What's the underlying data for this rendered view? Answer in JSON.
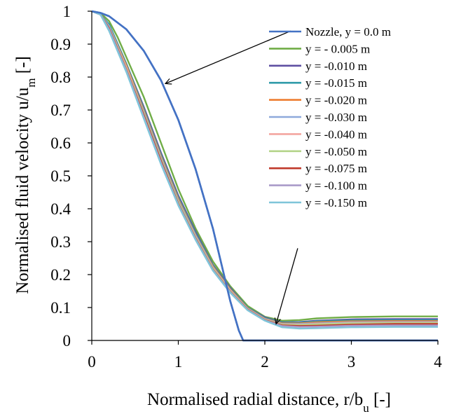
{
  "chart_data": {
    "type": "line",
    "title": "",
    "xlabel": {
      "main": "Normalised radial distance, r/b",
      "sub": "u",
      "tail": " [-]"
    },
    "ylabel": {
      "main": "Normalised fluid velocity u/u",
      "sub": "m",
      "tail": "  [-]"
    },
    "xlim": [
      0,
      4
    ],
    "ylim": [
      0,
      1
    ],
    "xticks": [
      "0",
      "1",
      "2",
      "3",
      "4"
    ],
    "yticks": [
      "0",
      "0.1",
      "0.2",
      "0.3",
      "0.4",
      "0.5",
      "0.6",
      "0.7",
      "0.8",
      "0.9",
      "1"
    ],
    "grid": false,
    "legend": "top-right",
    "series": [
      {
        "name": "Nozzle, y = 0.0 m",
        "color": "#4472C4",
        "x": [
          0,
          0.1,
          0.2,
          0.4,
          0.6,
          0.8,
          1.0,
          1.2,
          1.4,
          1.6,
          1.7,
          1.75,
          2.0,
          3.0,
          4.0
        ],
        "y": [
          1,
          0.995,
          0.985,
          0.945,
          0.88,
          0.79,
          0.67,
          0.52,
          0.34,
          0.12,
          0.03,
          0,
          0,
          0,
          0
        ]
      },
      {
        "name": "y = - 0.005 m",
        "color": "#70AD47",
        "x": [
          0,
          0.1,
          0.2,
          0.3,
          0.4,
          0.6,
          0.8,
          1.0,
          1.2,
          1.4,
          1.6,
          1.8,
          2.0,
          2.2,
          2.4,
          2.6,
          3.0,
          3.5,
          4.0
        ],
        "y": [
          1,
          0.995,
          0.97,
          0.92,
          0.86,
          0.74,
          0.6,
          0.46,
          0.34,
          0.24,
          0.165,
          0.105,
          0.072,
          0.06,
          0.062,
          0.067,
          0.071,
          0.073,
          0.073
        ]
      },
      {
        "name": "y = -0.010 m",
        "color": "#5E4FA2",
        "x": [
          0,
          0.1,
          0.2,
          0.4,
          0.6,
          0.8,
          1.0,
          1.2,
          1.4,
          1.6,
          1.8,
          2.0,
          2.2,
          2.4,
          2.6,
          3.0,
          3.5,
          4.0
        ],
        "y": [
          1,
          0.99,
          0.96,
          0.84,
          0.71,
          0.57,
          0.44,
          0.33,
          0.23,
          0.16,
          0.1,
          0.07,
          0.055,
          0.056,
          0.06,
          0.064,
          0.065,
          0.065
        ]
      },
      {
        "name": "y = -0.015 m",
        "color": "#2E9AA8",
        "x": [
          0,
          0.1,
          0.2,
          0.4,
          0.6,
          0.8,
          1.0,
          1.2,
          1.4,
          1.6,
          1.8,
          2.0,
          2.2,
          2.4,
          2.6,
          3.0,
          3.5,
          4.0
        ],
        "y": [
          1,
          0.99,
          0.96,
          0.84,
          0.705,
          0.565,
          0.435,
          0.325,
          0.228,
          0.157,
          0.1,
          0.068,
          0.054,
          0.054,
          0.058,
          0.061,
          0.062,
          0.062
        ]
      },
      {
        "name": "y = -0.020 m",
        "color": "#ED7D31",
        "x": [
          0,
          0.1,
          0.2,
          0.4,
          0.6,
          0.8,
          1.0,
          1.2,
          1.4,
          1.6,
          1.8,
          2.0,
          2.2,
          2.4,
          2.6,
          3.0,
          3.5,
          4.0
        ],
        "y": [
          1,
          0.99,
          0.955,
          0.835,
          0.7,
          0.56,
          0.43,
          0.32,
          0.225,
          0.155,
          0.098,
          0.066,
          0.052,
          0.052,
          0.055,
          0.058,
          0.059,
          0.059
        ]
      },
      {
        "name": "y = -0.030 m",
        "color": "#8EA9DB",
        "x": [
          0,
          0.1,
          0.2,
          0.4,
          0.6,
          0.8,
          1.0,
          1.2,
          1.4,
          1.6,
          1.8,
          2.0,
          2.2,
          2.4,
          2.6,
          3.0,
          3.5,
          4.0
        ],
        "y": [
          1,
          0.99,
          0.955,
          0.83,
          0.695,
          0.555,
          0.425,
          0.318,
          0.222,
          0.153,
          0.097,
          0.065,
          0.05,
          0.05,
          0.052,
          0.055,
          0.056,
          0.056
        ]
      },
      {
        "name": "y = -0.040 m",
        "color": "#F4A6A0",
        "x": [
          0,
          0.1,
          0.2,
          0.4,
          0.6,
          0.8,
          1.0,
          1.2,
          1.4,
          1.6,
          1.8,
          2.0,
          2.2,
          2.4,
          2.6,
          3.0,
          3.5,
          4.0
        ],
        "y": [
          1,
          0.99,
          0.95,
          0.83,
          0.69,
          0.55,
          0.42,
          0.315,
          0.22,
          0.152,
          0.096,
          0.064,
          0.049,
          0.048,
          0.05,
          0.053,
          0.054,
          0.054
        ]
      },
      {
        "name": "y = -0.050 m",
        "color": "#B4D48A",
        "x": [
          0,
          0.1,
          0.2,
          0.4,
          0.6,
          0.8,
          1.0,
          1.2,
          1.4,
          1.6,
          1.8,
          2.0,
          2.2,
          2.4,
          2.6,
          3.0,
          3.5,
          4.0
        ],
        "y": [
          1,
          0.99,
          0.95,
          0.825,
          0.69,
          0.55,
          0.42,
          0.313,
          0.218,
          0.15,
          0.095,
          0.063,
          0.048,
          0.047,
          0.049,
          0.052,
          0.053,
          0.053
        ]
      },
      {
        "name": "y = -0.075 m",
        "color": "#C0392B",
        "x": [
          0,
          0.1,
          0.2,
          0.4,
          0.6,
          0.8,
          1.0,
          1.2,
          1.4,
          1.6,
          1.8,
          2.0,
          2.2,
          2.4,
          2.6,
          3.0,
          3.5,
          4.0
        ],
        "y": [
          1,
          0.99,
          0.948,
          0.822,
          0.685,
          0.545,
          0.415,
          0.31,
          0.215,
          0.148,
          0.094,
          0.062,
          0.046,
          0.044,
          0.045,
          0.048,
          0.05,
          0.05
        ]
      },
      {
        "name": "y = -0.100 m",
        "color": "#A99BC9",
        "x": [
          0,
          0.1,
          0.2,
          0.4,
          0.6,
          0.8,
          1.0,
          1.2,
          1.4,
          1.6,
          1.8,
          2.0,
          2.2,
          2.4,
          2.6,
          3.0,
          3.5,
          4.0
        ],
        "y": [
          1,
          0.99,
          0.945,
          0.82,
          0.68,
          0.54,
          0.413,
          0.308,
          0.214,
          0.147,
          0.093,
          0.061,
          0.044,
          0.041,
          0.042,
          0.045,
          0.046,
          0.046
        ]
      },
      {
        "name": "y = -0.150 m",
        "color": "#7FC5D9",
        "x": [
          0,
          0.1,
          0.2,
          0.4,
          0.6,
          0.8,
          1.0,
          1.2,
          1.4,
          1.6,
          1.8,
          2.0,
          2.2,
          2.4,
          2.6,
          3.0,
          3.5,
          4.0
        ],
        "y": [
          1,
          0.99,
          0.94,
          0.815,
          0.675,
          0.535,
          0.41,
          0.305,
          0.212,
          0.145,
          0.092,
          0.06,
          0.04,
          0.036,
          0.037,
          0.04,
          0.041,
          0.041
        ]
      }
    ],
    "annotations": [
      {
        "type": "arrow",
        "from": [
          2.3,
          0.94
        ],
        "to": [
          0.85,
          0.78
        ]
      },
      {
        "type": "arrow",
        "from": [
          2.38,
          0.28
        ],
        "to": [
          2.13,
          0.05
        ]
      }
    ]
  }
}
